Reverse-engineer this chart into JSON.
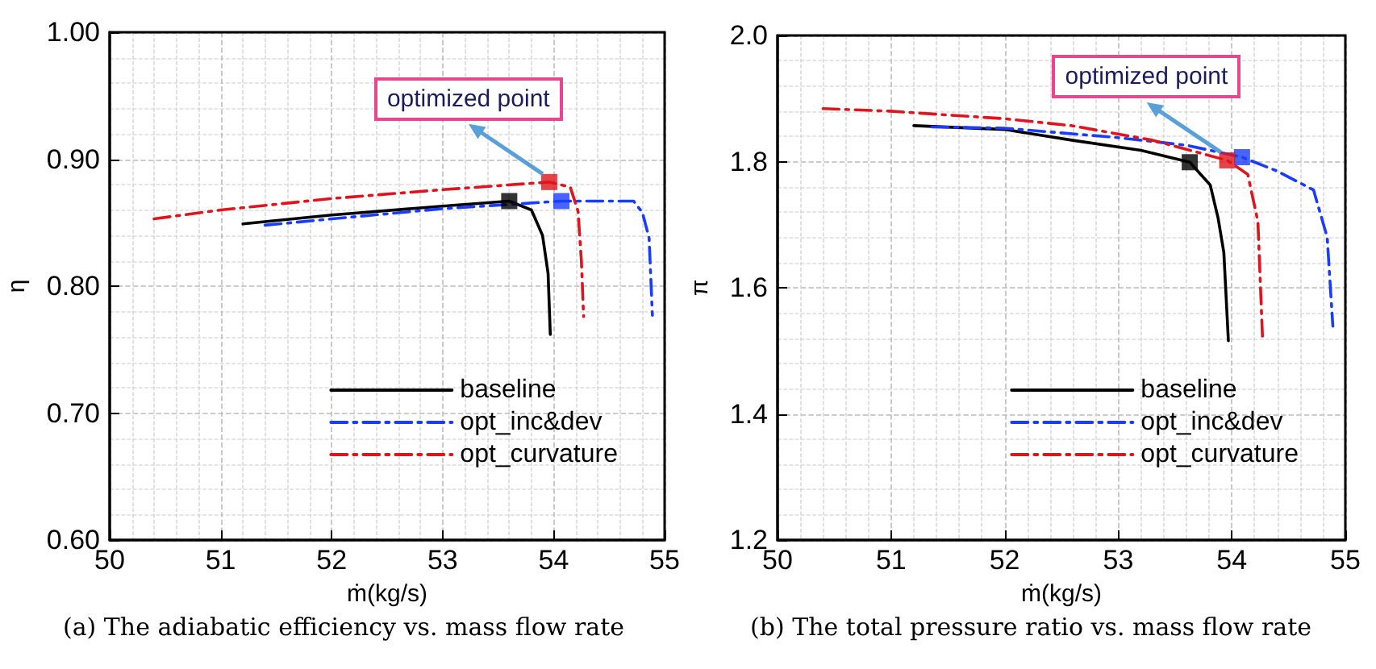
{
  "chart_data": [
    {
      "type": "line",
      "xlabel": "ṁ(kg/s)",
      "ylabel": "η",
      "xlim": [
        50,
        55
      ],
      "xticks": [
        50,
        51,
        52,
        53,
        54,
        55
      ],
      "ylim": [
        0.6,
        1.0
      ],
      "yticks": [
        {
          "value": 0.6,
          "label": "0.60"
        },
        {
          "value": 0.7,
          "label": "0.70"
        },
        {
          "value": 0.8,
          "label": "0.80"
        },
        {
          "value": 0.9,
          "label": "0.90"
        },
        {
          "value": 1.0,
          "label": "1.00"
        }
      ],
      "grid": true,
      "legend": "bottom right",
      "marker": "none",
      "annotations": [
        "(a) The adiabatic efficiency vs. mass flow rate",
        {
          "text": "optimized point",
          "x": 53.96,
          "y": 0.882
        }
      ],
      "series": [
        {
          "name": "baseline",
          "color": "#000000",
          "line_style": "solid",
          "x": [
            51.2,
            52.0,
            53.0,
            53.6,
            53.8,
            53.9,
            53.95,
            53.97
          ],
          "values": [
            0.849,
            0.856,
            0.863,
            0.867,
            0.86,
            0.84,
            0.81,
            0.762
          ]
        },
        {
          "name": "opt_inc&dev",
          "color": "#1a3cff",
          "line_style": "dashed",
          "x": [
            51.4,
            52.0,
            53.0,
            54.07,
            54.72,
            54.8,
            54.86,
            54.89
          ],
          "values": [
            0.848,
            0.853,
            0.861,
            0.867,
            0.867,
            0.858,
            0.838,
            0.777
          ]
        },
        {
          "name": "opt_curvature",
          "color": "#e0141c",
          "line_style": "dashed",
          "x": [
            50.4,
            51.0,
            52.0,
            53.0,
            53.96,
            54.15,
            54.22,
            54.25,
            54.27
          ],
          "values": [
            0.853,
            0.86,
            0.869,
            0.876,
            0.882,
            0.878,
            0.859,
            0.82,
            0.776
          ]
        },
        {
          "type": "scatter",
          "marker": "square",
          "color": "#000000",
          "x": [
            53.6
          ],
          "values": [
            0.867
          ]
        },
        {
          "type": "scatter",
          "marker": "square",
          "color": "#1a3cff",
          "x": [
            54.07
          ],
          "values": [
            0.867
          ]
        },
        {
          "type": "scatter",
          "marker": "square",
          "color": "#e0141c",
          "x": [
            53.96
          ],
          "values": [
            0.882
          ]
        }
      ]
    },
    {
      "type": "line",
      "xlabel": "ṁ(kg/s)",
      "ylabel": "π",
      "xlim": [
        50,
        55
      ],
      "xticks": [
        50,
        51,
        52,
        53,
        54,
        55
      ],
      "ylim": [
        1.2,
        2.0
      ],
      "yticks": [
        1.2,
        1.4,
        1.6,
        1.8,
        {
          "value": 2.0,
          "label": "2.0"
        }
      ],
      "grid": true,
      "legend": "bottom right",
      "marker": "none",
      "annotations": [
        "(b) The total pressure ratio vs. mass flow rate",
        {
          "text": "optimized point",
          "x": 53.96,
          "y": 1.802
        }
      ],
      "series": [
        {
          "name": "baseline",
          "color": "#000000",
          "line_style": "solid",
          "x": [
            51.2,
            52.0,
            52.59,
            53.2,
            53.63,
            53.81,
            53.88,
            53.93,
            53.97
          ],
          "values": [
            1.857,
            1.851,
            1.834,
            1.818,
            1.799,
            1.763,
            1.71,
            1.656,
            1.516
          ]
        },
        {
          "name": "opt_inc&dev",
          "color": "#1a3cff",
          "line_style": "dashed",
          "x": [
            51.36,
            52.0,
            53.0,
            53.6,
            54.09,
            54.4,
            54.72,
            54.84,
            54.89
          ],
          "values": [
            1.855,
            1.853,
            1.838,
            1.826,
            1.807,
            1.785,
            1.755,
            1.68,
            1.539
          ]
        },
        {
          "name": "opt_curvature",
          "color": "#e0141c",
          "line_style": "dashed",
          "x": [
            50.4,
            50.99,
            52.0,
            52.59,
            53.3,
            53.96,
            54.14,
            54.23,
            54.27
          ],
          "values": [
            1.884,
            1.88,
            1.868,
            1.857,
            1.834,
            1.802,
            1.78,
            1.705,
            1.523
          ]
        },
        {
          "type": "scatter",
          "marker": "square",
          "color": "#000000",
          "x": [
            53.63
          ],
          "values": [
            1.799
          ]
        },
        {
          "type": "scatter",
          "marker": "square",
          "color": "#1a3cff",
          "x": [
            54.09
          ],
          "values": [
            1.807
          ]
        },
        {
          "type": "scatter",
          "marker": "square",
          "color": "#e0141c",
          "x": [
            53.96
          ],
          "values": [
            1.802
          ]
        }
      ]
    }
  ]
}
